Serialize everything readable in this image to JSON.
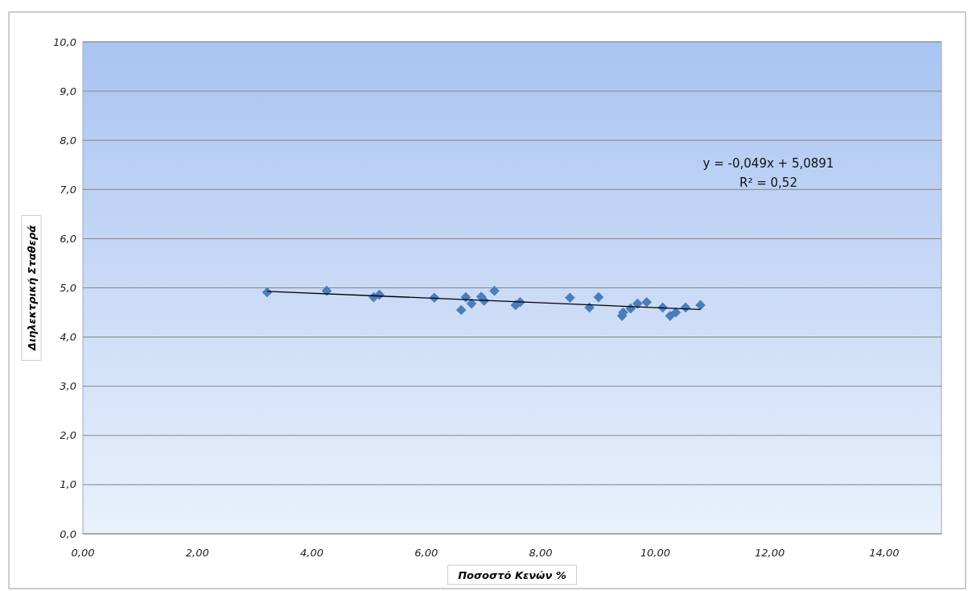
{
  "chart_data": {
    "type": "scatter",
    "xlabel": "Ποσοστό Κενών %",
    "ylabel": "Διηλεκτρική Σταθερά",
    "xlim": [
      0,
      15
    ],
    "xticks": [
      {
        "value": 0,
        "label": "0,00"
      },
      {
        "value": 2,
        "label": "2,00"
      },
      {
        "value": 4,
        "label": "4,00"
      },
      {
        "value": 6,
        "label": "6,00"
      },
      {
        "value": 8,
        "label": "8,00"
      },
      {
        "value": 10,
        "label": "10,00"
      },
      {
        "value": 12,
        "label": "12,00"
      },
      {
        "value": 14,
        "label": "14,00"
      }
    ],
    "ylim": [
      0,
      10
    ],
    "yticks": [
      {
        "value": 0,
        "label": "0,0"
      },
      {
        "value": 1,
        "label": "1,0"
      },
      {
        "value": 2,
        "label": "2,0"
      },
      {
        "value": 3,
        "label": "3,0"
      },
      {
        "value": 4,
        "label": "4,0"
      },
      {
        "value": 5,
        "label": "5,0"
      },
      {
        "value": 6,
        "label": "6,0"
      },
      {
        "value": 7,
        "label": "7,0"
      },
      {
        "value": 8,
        "label": "8,0"
      },
      {
        "value": 9,
        "label": "9,0"
      },
      {
        "value": 10,
        "label": "10,0"
      }
    ],
    "grid": "y",
    "series": [
      {
        "type": "scatter",
        "color": "#4a7ebb",
        "marker": "diamond",
        "x": [
          3.22,
          4.26,
          5.08,
          5.18,
          6.14,
          6.61,
          6.69,
          6.79,
          6.96,
          7.01,
          7.19,
          7.56,
          7.64,
          8.51,
          8.85,
          9.01,
          9.42,
          9.44,
          9.57,
          9.69,
          9.85,
          10.13,
          10.26,
          10.36,
          10.53,
          10.79
        ],
        "values": [
          4.91,
          4.94,
          4.81,
          4.86,
          4.8,
          4.55,
          4.81,
          4.68,
          4.82,
          4.74,
          4.94,
          4.65,
          4.71,
          4.8,
          4.6,
          4.81,
          4.43,
          4.5,
          4.58,
          4.68,
          4.71,
          4.6,
          4.43,
          4.5,
          4.6,
          4.65
        ]
      },
      {
        "type": "line",
        "color": "#000000",
        "marker": "none",
        "x": [
          3.22,
          10.79
        ],
        "values": [
          4.93,
          4.56
        ]
      }
    ],
    "annotations": [
      "y = -0,049x + 5,0891",
      "R² = 0,52"
    ]
  }
}
